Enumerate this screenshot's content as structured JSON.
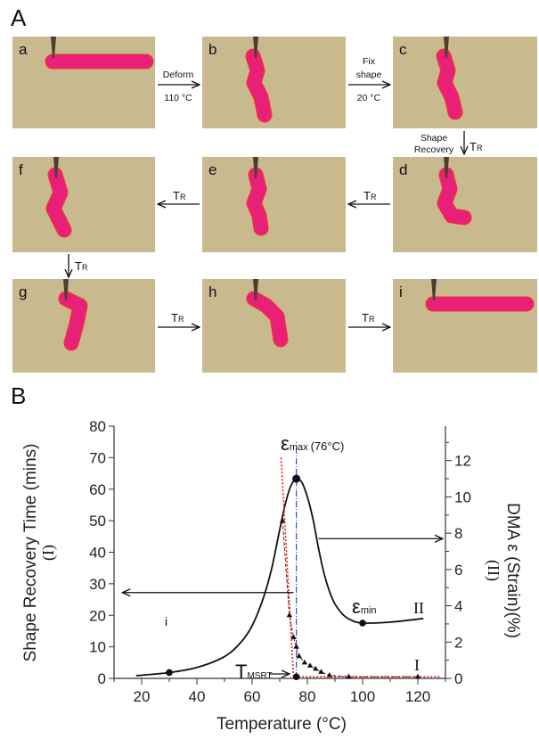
{
  "figure": {
    "panel_a_label": "A",
    "panel_b_label": "B",
    "photos": [
      {
        "id": "a",
        "label": "a",
        "shape": "straight"
      },
      {
        "id": "b",
        "label": "b",
        "shape": "twisted-deforming"
      },
      {
        "id": "c",
        "label": "c",
        "shape": "twisted-fixed"
      },
      {
        "id": "d",
        "label": "d",
        "shape": "partly-recovered-1"
      },
      {
        "id": "e",
        "label": "e",
        "shape": "partly-recovered-2"
      },
      {
        "id": "f",
        "label": "f",
        "shape": "partly-recovered-3"
      },
      {
        "id": "g",
        "label": "g",
        "shape": "partly-recovered-4"
      },
      {
        "id": "h",
        "label": "h",
        "shape": "partly-recovered-5"
      },
      {
        "id": "i",
        "label": "i",
        "shape": "straight"
      }
    ],
    "steps": {
      "a_to_b": {
        "above": "Deform",
        "below": "110 °C"
      },
      "b_to_c": {
        "above_1": "Fix",
        "above_2": "shape",
        "below": "20 °C"
      },
      "c_to_d": {
        "left_1": "Shape",
        "left_2": "Recovery",
        "right": "T",
        "right_sub": "R"
      },
      "d_to_e": {
        "label": "T",
        "sub": "R"
      },
      "e_to_f": {
        "label": "T",
        "sub": "R"
      },
      "f_to_g": {
        "label": "T",
        "sub": "R"
      },
      "g_to_h": {
        "label": "T",
        "sub": "R"
      },
      "h_to_i": {
        "label": "T",
        "sub": "R"
      }
    },
    "colors": {
      "background": "#c8b98f",
      "polymer": "#e8207a",
      "polymer_edge": "#f0303a"
    }
  },
  "chart_data": {
    "type": "line",
    "xlabel": "Temperature (°C)",
    "ylabel_left": "Shape Recovery Time (mins)",
    "ylabel_left_sub": "(I)",
    "ylabel_right": "DMA ε (Strain)(%)",
    "ylabel_right_sub": "(II)",
    "xlim": [
      10,
      130
    ],
    "ylim_left": [
      0,
      80
    ],
    "ylim_right": [
      0,
      13.9
    ],
    "xticks": [
      20,
      40,
      60,
      80,
      100,
      120
    ],
    "yticks_left": [
      0,
      10,
      20,
      30,
      40,
      50,
      60,
      70,
      80
    ],
    "yticks_right": [
      0,
      2,
      4,
      6,
      8,
      10,
      12
    ],
    "series": [
      {
        "name": "II (DMA strain)",
        "axis": "right",
        "color": "#111111",
        "x": [
          18,
          30,
          40,
          50,
          56,
          60,
          64,
          67,
          70,
          72,
          74,
          76,
          78,
          80,
          82,
          84,
          86,
          88,
          90,
          93,
          96,
          100,
          110,
          122
        ],
        "y": [
          0.15,
          0.32,
          0.6,
          1.2,
          2.0,
          2.9,
          4.4,
          6.0,
          8.2,
          9.6,
          10.6,
          11.0,
          10.8,
          10.0,
          8.8,
          7.2,
          5.8,
          4.8,
          4.1,
          3.5,
          3.2,
          3.05,
          3.1,
          3.3
        ]
      },
      {
        "name": "I (shape recovery time)",
        "axis": "left",
        "color": "#111111",
        "marker": "triangle",
        "x": [
          71,
          73.5,
          75,
          76,
          77,
          79,
          81,
          83,
          85,
          88,
          95,
          120
        ],
        "y": [
          50,
          20,
          13,
          10,
          7,
          5,
          4,
          3,
          2,
          1,
          0.5,
          0.5
        ]
      },
      {
        "name": "fit (red dotted)",
        "axis": "left",
        "color": "#e02020",
        "x": [
          70.5,
          75,
          75,
          128
        ],
        "y": [
          70,
          0.5,
          0.5,
          0.5
        ]
      }
    ],
    "vline": {
      "x": 76,
      "color": "#3050d0",
      "ymax_left": 75
    },
    "points": [
      {
        "label": "i",
        "x": 30,
        "y_right": 0.32
      },
      {
        "label": "εmax (76°C)",
        "x": 76,
        "y_right": 11.0
      },
      {
        "label": "εmin",
        "x": 100,
        "y_right": 3.05
      },
      {
        "label": "TMSRT",
        "x": 76,
        "y_left": 0.5
      }
    ],
    "annotations": {
      "i": "i",
      "emax_symbol": "ε",
      "emax_sub": "max",
      "emax_temp": "(76°C)",
      "emin_symbol": "ε",
      "emin_sub": "min",
      "tmsrt_main": "T",
      "tmsrt_sub": "MSRT",
      "curve_I": "I",
      "curve_II": "II"
    }
  }
}
